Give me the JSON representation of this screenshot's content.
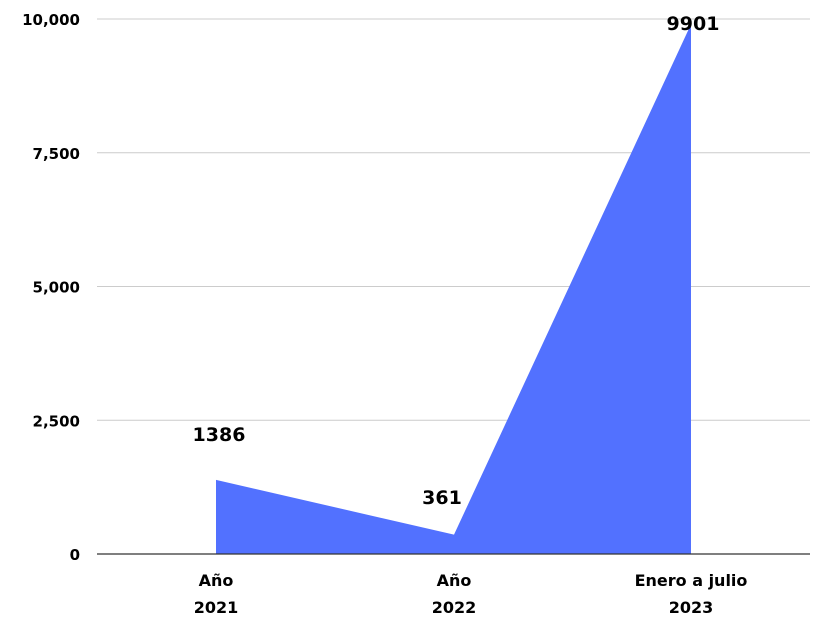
{
  "chart_data": {
    "type": "area",
    "categories": [
      [
        "Año",
        "2021"
      ],
      [
        "Año",
        "2022"
      ],
      [
        "Enero a julio",
        "2023"
      ]
    ],
    "values": [
      1386,
      361,
      9901
    ],
    "data_labels": [
      "1386",
      "361",
      "9901"
    ],
    "y_ticks": [
      {
        "value": 0,
        "label": "0"
      },
      {
        "value": 2500,
        "label": "2,500"
      },
      {
        "value": 5000,
        "label": "5,000"
      },
      {
        "value": 7500,
        "label": "7,500"
      },
      {
        "value": 10000,
        "label": "10,000"
      }
    ],
    "ylim": [
      0,
      10000
    ],
    "grid": true,
    "legend": "none",
    "colors": {
      "area": "#5271ff",
      "gridline": "#cccccc",
      "axis": "#333333",
      "text": "#000000"
    }
  }
}
